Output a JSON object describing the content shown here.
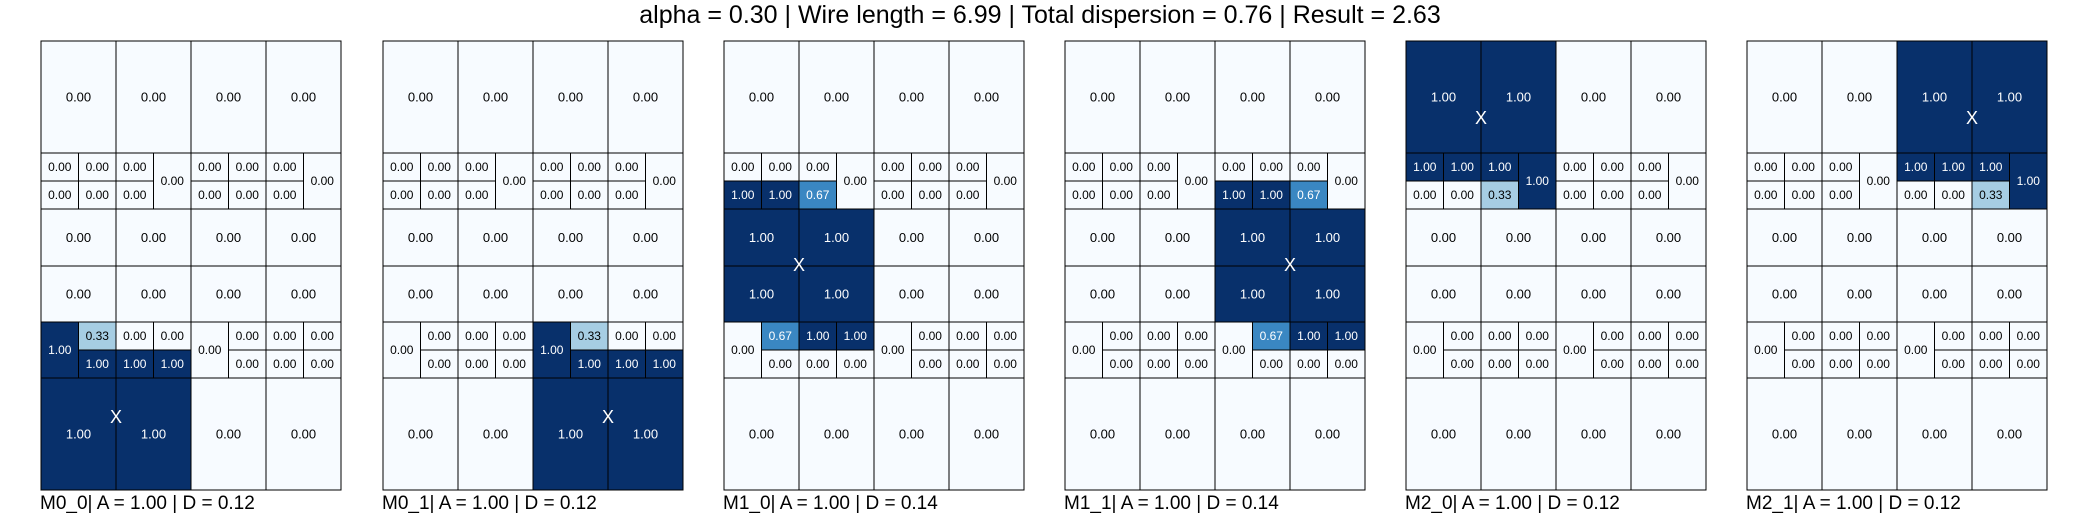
{
  "title": "alpha = 0.30 | Wire length = 6.99 | Total dispersion = 0.76 | Result = 2.63",
  "chart_data": {
    "type": "heatmap",
    "colormap": "Blues",
    "value_range": [
      0,
      1
    ],
    "marker_label": "X",
    "panels": [
      {
        "caption": "M0_0| A = 1.00 | D = 0.12",
        "top": [
          "0.00",
          "0.00",
          "0.00",
          "0.00"
        ],
        "mid1": [
          [
            "0.00",
            "0.00",
            "0.00",
            "0.00",
            "0.00",
            "0.00",
            "0.00",
            "0.00"
          ],
          [
            "0.00",
            "0.00",
            "0.00",
            "0.00",
            "0.00",
            "0.00",
            "0.00",
            "0.00"
          ]
        ],
        "row3": [
          "0.00",
          "0.00",
          "0.00",
          "0.00"
        ],
        "row4": [
          "0.00",
          "0.00",
          "0.00",
          "0.00"
        ],
        "mid2": [
          [
            "1.00",
            "0.33",
            "0.00",
            "0.00",
            "0.00",
            "0.00",
            "0.00",
            "0.00"
          ],
          [
            "1.00",
            "1.00",
            "1.00",
            "1.00",
            "0.00",
            "0.00",
            "0.00",
            "0.00"
          ]
        ],
        "bottom": [
          "1.00",
          "1.00",
          "0.00",
          "0.00"
        ],
        "marker": "bottom-left"
      },
      {
        "caption": "M0_1| A = 1.00 | D = 0.12",
        "top": [
          "0.00",
          "0.00",
          "0.00",
          "0.00"
        ],
        "mid1": [
          [
            "0.00",
            "0.00",
            "0.00",
            "0.00",
            "0.00",
            "0.00",
            "0.00",
            "0.00"
          ],
          [
            "0.00",
            "0.00",
            "0.00",
            "0.00",
            "0.00",
            "0.00",
            "0.00",
            "0.00"
          ]
        ],
        "row3": [
          "0.00",
          "0.00",
          "0.00",
          "0.00"
        ],
        "row4": [
          "0.00",
          "0.00",
          "0.00",
          "0.00"
        ],
        "mid2": [
          [
            "0.00",
            "0.00",
            "0.00",
            "0.00",
            "1.00",
            "0.33",
            "0.00",
            "0.00"
          ],
          [
            "0.00",
            "0.00",
            "0.00",
            "0.00",
            "1.00",
            "1.00",
            "1.00",
            "1.00"
          ]
        ],
        "bottom": [
          "0.00",
          "0.00",
          "1.00",
          "1.00"
        ],
        "marker": "bottom-right"
      },
      {
        "caption": "M1_0| A = 1.00 | D = 0.14",
        "top": [
          "0.00",
          "0.00",
          "0.00",
          "0.00"
        ],
        "mid1": [
          [
            "0.00",
            "0.00",
            "0.00",
            "0.00",
            "0.00",
            "0.00",
            "0.00",
            "0.00"
          ],
          [
            "1.00",
            "1.00",
            "0.67",
            "0.00",
            "0.00",
            "0.00",
            "0.00",
            "0.00"
          ]
        ],
        "row3": [
          "1.00",
          "1.00",
          "0.00",
          "0.00"
        ],
        "row4": [
          "1.00",
          "1.00",
          "0.00",
          "0.00"
        ],
        "mid2": [
          [
            "0.00",
            "0.67",
            "1.00",
            "1.00",
            "0.00",
            "0.00",
            "0.00",
            "0.00"
          ],
          [
            "0.00",
            "0.00",
            "0.00",
            "0.00",
            "0.00",
            "0.00",
            "0.00",
            "0.00"
          ]
        ],
        "bottom": [
          "0.00",
          "0.00",
          "0.00",
          "0.00"
        ],
        "marker": "middle-left"
      },
      {
        "caption": "M1_1| A = 1.00 | D = 0.14",
        "top": [
          "0.00",
          "0.00",
          "0.00",
          "0.00"
        ],
        "mid1": [
          [
            "0.00",
            "0.00",
            "0.00",
            "0.00",
            "0.00",
            "0.00",
            "0.00",
            "0.00"
          ],
          [
            "0.00",
            "0.00",
            "0.00",
            "0.00",
            "1.00",
            "1.00",
            "0.67",
            "0.00"
          ]
        ],
        "row3": [
          "0.00",
          "0.00",
          "1.00",
          "1.00"
        ],
        "row4": [
          "0.00",
          "0.00",
          "1.00",
          "1.00"
        ],
        "mid2": [
          [
            "0.00",
            "0.00",
            "0.00",
            "0.00",
            "0.00",
            "0.67",
            "1.00",
            "1.00"
          ],
          [
            "0.00",
            "0.00",
            "0.00",
            "0.00",
            "0.00",
            "0.00",
            "0.00",
            "0.00"
          ]
        ],
        "bottom": [
          "0.00",
          "0.00",
          "0.00",
          "0.00"
        ],
        "marker": "middle-right"
      },
      {
        "caption": "M2_0| A = 1.00 | D = 0.12",
        "top": [
          "1.00",
          "1.00",
          "0.00",
          "0.00"
        ],
        "mid1": [
          [
            "1.00",
            "1.00",
            "1.00",
            "1.00",
            "0.00",
            "0.00",
            "0.00",
            "0.00"
          ],
          [
            "0.00",
            "0.00",
            "0.33",
            "1.00",
            "0.00",
            "0.00",
            "0.00",
            "0.00"
          ]
        ],
        "row3": [
          "0.00",
          "0.00",
          "0.00",
          "0.00"
        ],
        "row4": [
          "0.00",
          "0.00",
          "0.00",
          "0.00"
        ],
        "mid2": [
          [
            "0.00",
            "0.00",
            "0.00",
            "0.00",
            "0.00",
            "0.00",
            "0.00",
            "0.00"
          ],
          [
            "0.00",
            "0.00",
            "0.00",
            "0.00",
            "0.00",
            "0.00",
            "0.00",
            "0.00"
          ]
        ],
        "bottom": [
          "0.00",
          "0.00",
          "0.00",
          "0.00"
        ],
        "marker": "top-left"
      },
      {
        "caption": "M2_1| A = 1.00 | D = 0.12",
        "top": [
          "0.00",
          "0.00",
          "1.00",
          "1.00"
        ],
        "mid1": [
          [
            "0.00",
            "0.00",
            "0.00",
            "0.00",
            "1.00",
            "1.00",
            "1.00",
            "1.00"
          ],
          [
            "0.00",
            "0.00",
            "0.00",
            "0.00",
            "0.00",
            "0.00",
            "0.33",
            "1.00"
          ]
        ],
        "row3": [
          "0.00",
          "0.00",
          "0.00",
          "0.00"
        ],
        "row4": [
          "0.00",
          "0.00",
          "0.00",
          "0.00"
        ],
        "mid2": [
          [
            "0.00",
            "0.00",
            "0.00",
            "0.00",
            "0.00",
            "0.00",
            "0.00",
            "0.00"
          ],
          [
            "0.00",
            "0.00",
            "0.00",
            "0.00",
            "0.00",
            "0.00",
            "0.00",
            "0.00"
          ]
        ],
        "bottom": [
          "0.00",
          "0.00",
          "0.00",
          "0.00"
        ],
        "marker": "top-right"
      }
    ]
  }
}
